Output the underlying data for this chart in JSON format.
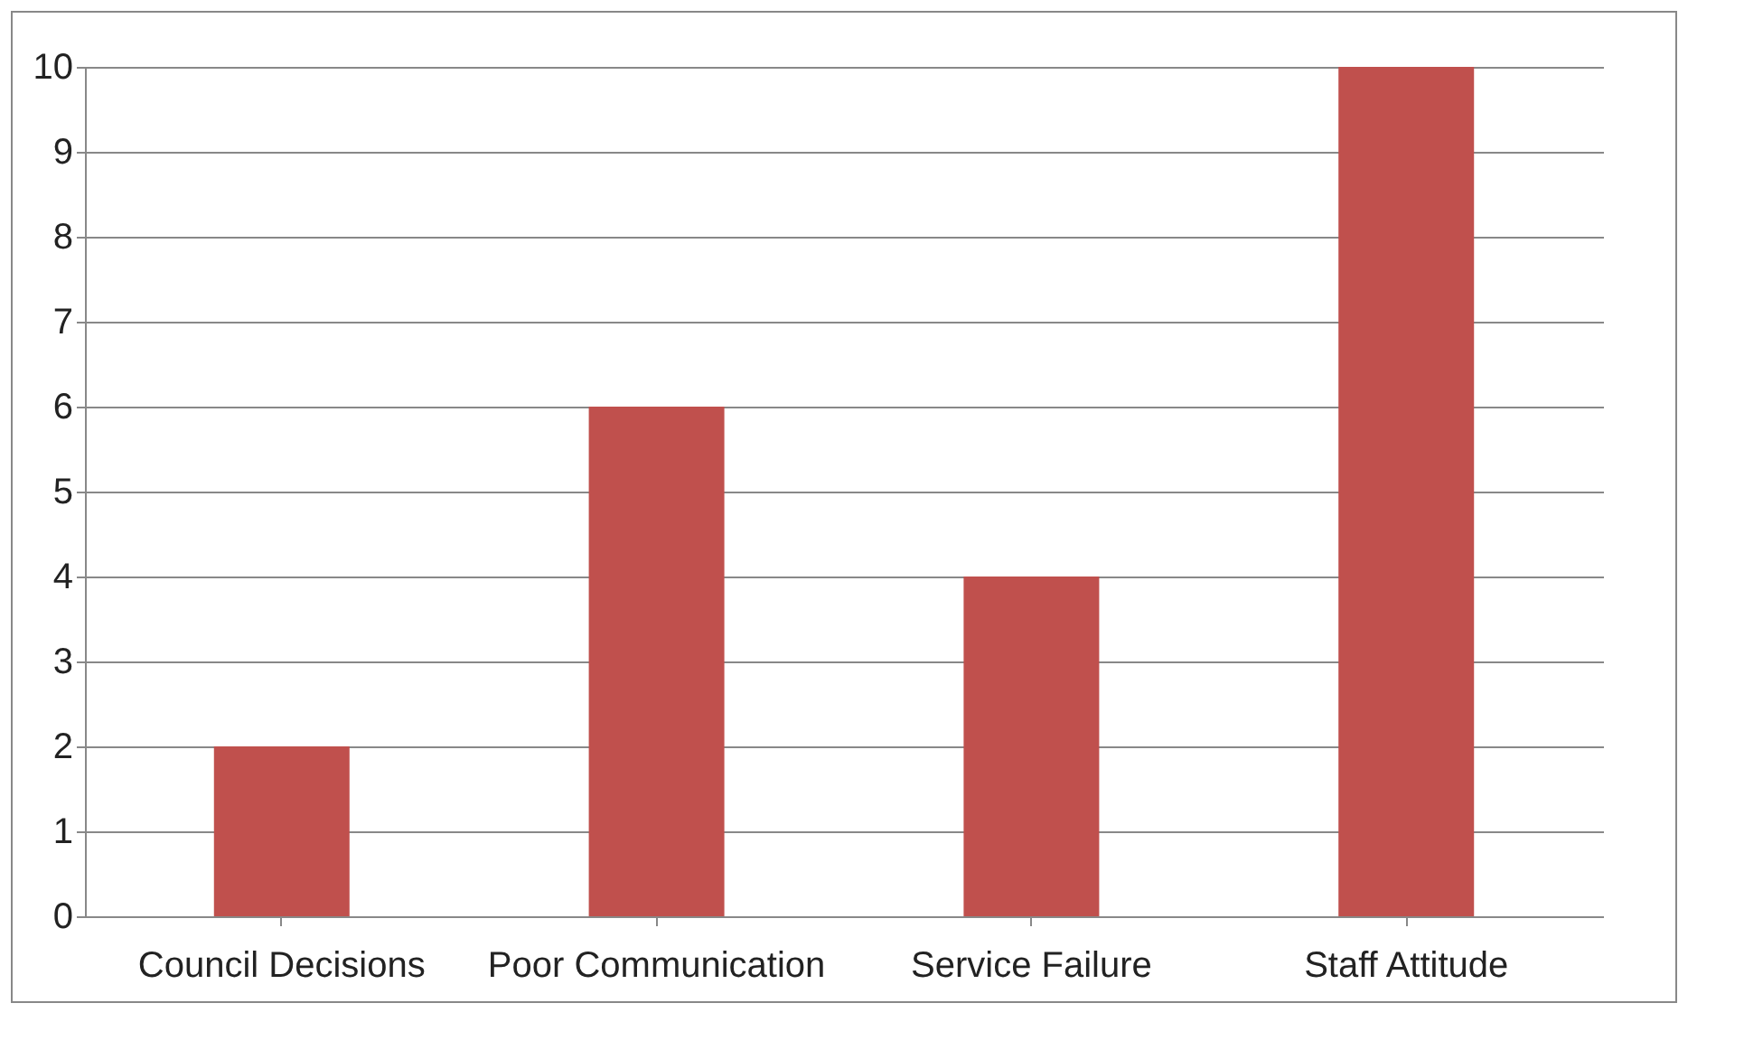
{
  "chart_data": {
    "type": "bar",
    "categories": [
      "Council Decisions",
      "Poor Communication",
      "Service Failure",
      "Staff Attitude"
    ],
    "values": [
      2,
      6,
      4,
      10
    ],
    "color": "#c0504d",
    "ylim": [
      0,
      10
    ],
    "yticks": [
      0,
      1,
      2,
      3,
      4,
      5,
      6,
      7,
      8,
      9,
      10
    ],
    "grid": "y"
  }
}
